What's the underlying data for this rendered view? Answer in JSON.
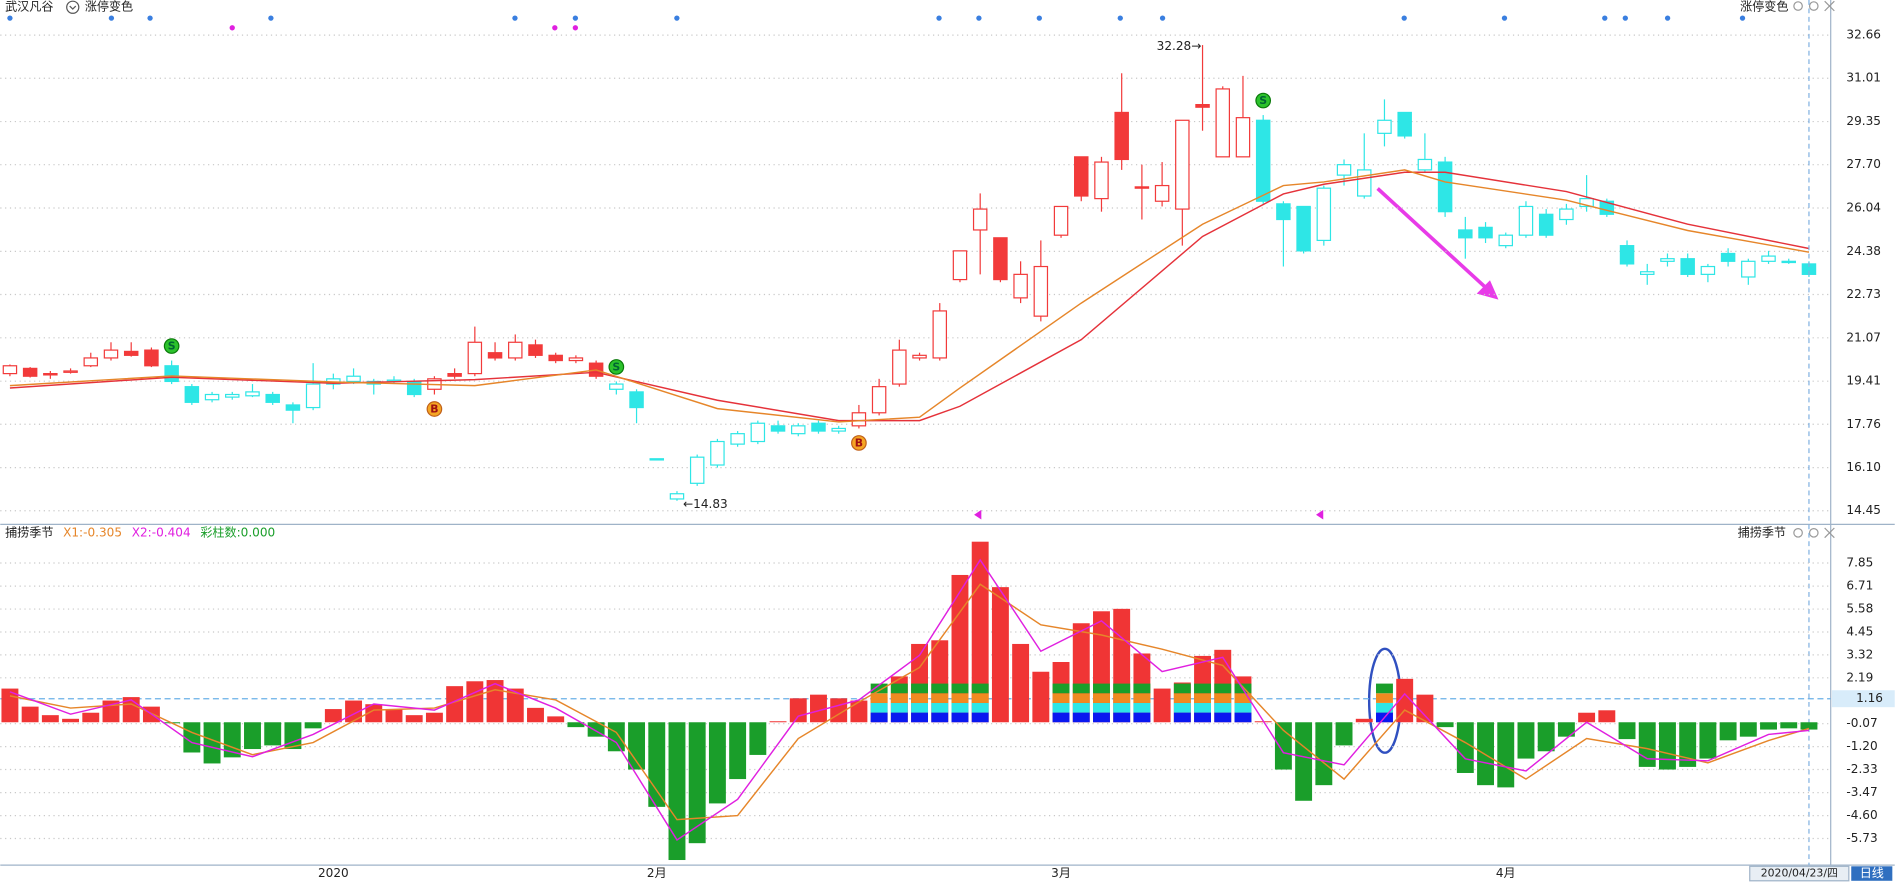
{
  "header": {
    "stock": "武汉凡谷",
    "indicator": "涨停变色",
    "indicator_right": "涨停变色"
  },
  "chart_data": [
    {
      "type": "candlestick",
      "categories": [
        null,
        null,
        null,
        null,
        null,
        null,
        null,
        null,
        null,
        null,
        null,
        null,
        null,
        null,
        null,
        null,
        "2020",
        null,
        null,
        null,
        null,
        null,
        null,
        null,
        null,
        null,
        null,
        null,
        null,
        null,
        null,
        null,
        "2月",
        null,
        null,
        null,
        null,
        null,
        null,
        null,
        null,
        null,
        null,
        null,
        null,
        null,
        null,
        null,
        null,
        null,
        null,
        null,
        "3月",
        null,
        null,
        null,
        null,
        null,
        null,
        null,
        null,
        null,
        null,
        null,
        null,
        null,
        null,
        null,
        null,
        null,
        null,
        null,
        null,
        null,
        "4月",
        null,
        null,
        null,
        null,
        null,
        null,
        null,
        null,
        null,
        null,
        null,
        null,
        null,
        null,
        null
      ],
      "open": [
        19.7,
        19.9,
        19.7,
        19.75,
        20.0,
        20.3,
        20.55,
        20.6,
        20.0,
        19.2,
        18.7,
        18.8,
        18.85,
        18.9,
        18.5,
        18.4,
        19.3,
        19.4,
        19.3,
        19.4,
        19.4,
        19.1,
        19.7,
        19.7,
        20.5,
        20.3,
        20.8,
        20.4,
        20.2,
        20.1,
        19.1,
        19.0,
        16.44,
        14.9,
        15.5,
        16.2,
        17.0,
        17.1,
        17.7,
        17.4,
        17.8,
        17.5,
        17.7,
        18.2,
        19.3,
        20.3,
        20.3,
        23.3,
        25.2,
        24.9,
        22.6,
        21.9,
        25.0,
        28.0,
        26.4,
        29.7,
        26.85,
        26.3,
        26.0,
        30.0,
        28.0,
        28.0,
        29.4,
        26.2,
        26.1,
        24.8,
        27.3,
        26.5,
        28.9,
        29.7,
        27.5,
        27.8,
        25.2,
        25.3,
        24.6,
        25.0,
        25.8,
        25.6,
        26.1,
        26.3,
        24.6,
        23.5,
        24.0,
        24.1,
        23.5,
        24.3,
        23.4,
        24.0,
        24.0,
        23.9
      ],
      "high": [
        20.05,
        19.95,
        19.8,
        19.9,
        20.5,
        20.9,
        20.9,
        20.7,
        20.2,
        19.3,
        19.0,
        19.0,
        19.3,
        19.0,
        18.6,
        20.1,
        19.7,
        19.9,
        19.5,
        19.6,
        19.5,
        19.6,
        19.9,
        21.5,
        20.9,
        21.2,
        21.0,
        20.5,
        20.4,
        20.2,
        19.4,
        19.1,
        16.45,
        15.2,
        16.6,
        17.2,
        17.5,
        17.9,
        17.9,
        17.8,
        17.9,
        17.7,
        18.5,
        19.5,
        21.0,
        20.5,
        22.4,
        24.4,
        26.6,
        24.9,
        24.0,
        24.8,
        26.1,
        28.0,
        28.0,
        31.2,
        27.7,
        27.8,
        29.4,
        32.28,
        30.7,
        31.1,
        29.6,
        26.3,
        26.1,
        26.9,
        27.9,
        28.9,
        30.2,
        29.7,
        28.9,
        28.0,
        25.7,
        25.5,
        25.1,
        26.3,
        26.0,
        26.2,
        27.3,
        26.4,
        24.8,
        23.9,
        24.3,
        24.3,
        23.9,
        24.5,
        24.1,
        24.4,
        24.1,
        24.0
      ],
      "low": [
        19.6,
        19.55,
        19.5,
        19.7,
        19.95,
        20.2,
        20.35,
        19.95,
        19.3,
        18.5,
        18.6,
        18.7,
        18.8,
        18.5,
        17.8,
        18.3,
        19.1,
        19.3,
        18.9,
        19.3,
        18.8,
        18.9,
        19.5,
        19.6,
        20.2,
        20.2,
        20.3,
        20.1,
        20.1,
        19.5,
        18.9,
        17.8,
        16.42,
        14.83,
        15.4,
        16.1,
        16.9,
        17.0,
        17.4,
        17.3,
        17.4,
        17.4,
        17.6,
        18.1,
        19.2,
        20.2,
        20.2,
        23.2,
        23.5,
        23.2,
        22.4,
        21.7,
        24.9,
        26.3,
        25.9,
        27.5,
        25.6,
        26.1,
        24.6,
        29.0,
        28.0,
        28.0,
        26.2,
        23.8,
        24.3,
        24.6,
        26.9,
        26.4,
        28.4,
        28.7,
        27.4,
        25.7,
        24.1,
        24.7,
        24.5,
        24.9,
        24.9,
        25.4,
        25.9,
        25.7,
        23.8,
        23.1,
        23.8,
        23.4,
        23.2,
        23.8,
        23.1,
        23.9,
        23.9,
        23.4
      ],
      "close": [
        20.0,
        19.6,
        19.65,
        19.8,
        20.3,
        20.6,
        20.4,
        20.0,
        19.4,
        18.6,
        18.9,
        18.9,
        19.0,
        18.6,
        18.3,
        19.3,
        19.5,
        19.6,
        19.4,
        19.45,
        18.9,
        19.5,
        19.6,
        20.9,
        20.3,
        20.9,
        20.4,
        20.2,
        20.3,
        19.6,
        19.3,
        18.4,
        16.43,
        15.1,
        16.5,
        17.1,
        17.4,
        17.8,
        17.5,
        17.7,
        17.5,
        17.6,
        18.2,
        19.2,
        20.6,
        20.4,
        22.1,
        24.4,
        26.0,
        23.3,
        23.5,
        23.8,
        26.1,
        26.5,
        27.8,
        27.9,
        26.8,
        26.9,
        29.4,
        29.9,
        30.6,
        29.5,
        26.3,
        25.6,
        24.4,
        26.8,
        27.7,
        27.5,
        29.4,
        28.8,
        27.9,
        25.9,
        24.9,
        24.9,
        25.0,
        26.1,
        25.0,
        26.0,
        26.4,
        25.8,
        23.9,
        23.6,
        24.1,
        23.5,
        23.8,
        24.0,
        24.0,
        24.2,
        24.0,
        23.5
      ],
      "up_color": "#f23a3a",
      "down_color": "#2ee6e6",
      "signals": [
        {
          "index": 8,
          "label": "S"
        },
        {
          "index": 21,
          "label": "B"
        },
        {
          "index": 30,
          "label": "S"
        },
        {
          "index": 42,
          "label": "B"
        },
        {
          "index": 62,
          "label": "S"
        }
      ],
      "lines": [
        {
          "color": "#e5323a",
          "x": [
            0,
            8,
            16,
            23,
            29,
            35,
            41,
            45,
            47,
            53,
            59,
            63,
            65,
            69,
            71,
            77,
            83,
            89
          ],
          "values": [
            19.15,
            19.56,
            19.33,
            19.47,
            19.75,
            18.68,
            17.9,
            17.9,
            18.45,
            21.0,
            24.95,
            26.58,
            26.95,
            27.41,
            27.41,
            26.67,
            25.42,
            24.49
          ]
        },
        {
          "color": "#e6862a",
          "x": [
            0,
            8,
            16,
            23,
            29,
            35,
            41,
            45,
            47,
            53,
            59,
            63,
            65,
            69,
            71,
            77,
            83,
            89
          ],
          "values": [
            19.24,
            19.61,
            19.38,
            19.24,
            19.84,
            18.36,
            17.85,
            18.03,
            19.15,
            22.4,
            25.42,
            26.9,
            27.04,
            27.5,
            27.04,
            26.34,
            25.18,
            24.35
          ]
        }
      ],
      "max_label": "32.28→",
      "min_label": "←14.83",
      "ylim": [
        14.02,
        33.08
      ],
      "yticks": [
        32.66,
        31.01,
        29.35,
        {
          "value": 27.7,
          "label": "27.70"
        },
        26.04,
        24.38,
        22.73,
        21.07,
        19.41,
        17.76,
        {
          "value": 16.1,
          "label": "16.10"
        },
        14.45
      ],
      "grid": true
    },
    {
      "type": "bar",
      "title": "捕捞季节",
      "title_right": "捕捞季节",
      "legend": [
        {
          "label": "X1:-0.305",
          "color": "#e6862a"
        },
        {
          "label": "X2:-0.404",
          "color": "#e020e0"
        },
        {
          "label": "彩柱数:0.000",
          "color": "#1a9e2a"
        }
      ],
      "values": [
        1.66,
        0.77,
        0.35,
        0.17,
        0.47,
        1.07,
        1.24,
        0.77,
        -0.05,
        -1.49,
        -2.03,
        -1.73,
        -1.32,
        -1.14,
        -1.32,
        -0.3,
        0.65,
        1.07,
        0.89,
        0.65,
        0.35,
        0.47,
        1.78,
        2.02,
        2.08,
        1.66,
        0.71,
        0.29,
        -0.24,
        -0.71,
        -1.43,
        -2.33,
        -4.17,
        -6.79,
        -5.96,
        -4.0,
        -2.8,
        -1.61,
        0.05,
        1.18,
        1.36,
        1.18,
        1.07,
        1.24,
        2.26,
        3.86,
        4.04,
        7.26,
        8.9,
        6.66,
        3.86,
        2.49,
        2.97,
        4.88,
        5.47,
        5.59,
        3.39,
        1.66,
        1.96,
        3.27,
        3.57,
        2.26,
        0.05,
        -2.33,
        -3.87,
        -3.1,
        -1.14,
        0.17,
        0.89,
        2.14,
        1.36,
        -0.24,
        -2.5,
        -3.1,
        -3.21,
        -1.79,
        -1.43,
        -0.71,
        0.47,
        0.59,
        -0.83,
        -2.2,
        -2.33,
        -2.2,
        -1.79,
        -0.89,
        -0.71,
        -0.36,
        -0.3,
        -0.36
      ],
      "pos_color": "#f03535",
      "neg_color": "#1a9e2a",
      "highlight": [
        43,
        44,
        45,
        46,
        47,
        48,
        52,
        53,
        54,
        55,
        56,
        58,
        59,
        60,
        61,
        68
      ],
      "lines": [
        {
          "color": "#e6862a",
          "x": [
            0,
            3,
            6,
            9,
            12,
            15,
            18,
            21,
            24,
            27,
            30,
            33,
            36,
            39,
            42,
            45,
            48,
            51,
            54,
            57,
            60,
            63,
            66,
            69,
            72,
            75,
            78,
            81,
            84,
            87,
            89
          ],
          "values": [
            1.3,
            0.7,
            0.9,
            -0.5,
            -1.6,
            -1.0,
            0.6,
            0.7,
            1.6,
            1.1,
            -0.5,
            -4.8,
            -4.6,
            -0.8,
            1.0,
            2.7,
            6.8,
            4.8,
            4.3,
            3.6,
            2.8,
            -0.4,
            -2.8,
            0.6,
            -1.0,
            -2.8,
            -0.8,
            -1.3,
            -2.0,
            -0.9,
            -0.305
          ]
        },
        {
          "color": "#e020e0",
          "x": [
            0,
            3,
            6,
            9,
            12,
            15,
            18,
            21,
            24,
            27,
            30,
            33,
            36,
            39,
            42,
            45,
            48,
            51,
            54,
            57,
            60,
            63,
            66,
            69,
            72,
            75,
            78,
            81,
            84,
            87,
            89
          ],
          "values": [
            1.5,
            0.4,
            1.1,
            -1.0,
            -1.7,
            -0.6,
            0.9,
            0.6,
            1.9,
            0.7,
            -1.0,
            -5.8,
            -3.8,
            0.3,
            1.1,
            3.3,
            8.0,
            3.5,
            5.0,
            2.5,
            3.2,
            -1.5,
            -2.1,
            1.4,
            -1.8,
            -2.4,
            0.0,
            -1.8,
            -1.9,
            -0.6,
            -0.404
          ]
        }
      ],
      "ref_line": 1.16,
      "ylim": [
        -6.98,
        8.92
      ],
      "yticks": [
        7.85,
        6.71,
        5.58,
        4.45,
        3.32,
        2.19,
        -0.07,
        {
          "value": -1.2,
          "label": "-1.20"
        },
        -2.33,
        -3.47,
        {
          "value": -4.6,
          "label": "-4.60"
        },
        -5.73
      ],
      "grid": true
    }
  ],
  "footer": {
    "cursor_label": "2020/04/23/四",
    "period": "日线"
  }
}
